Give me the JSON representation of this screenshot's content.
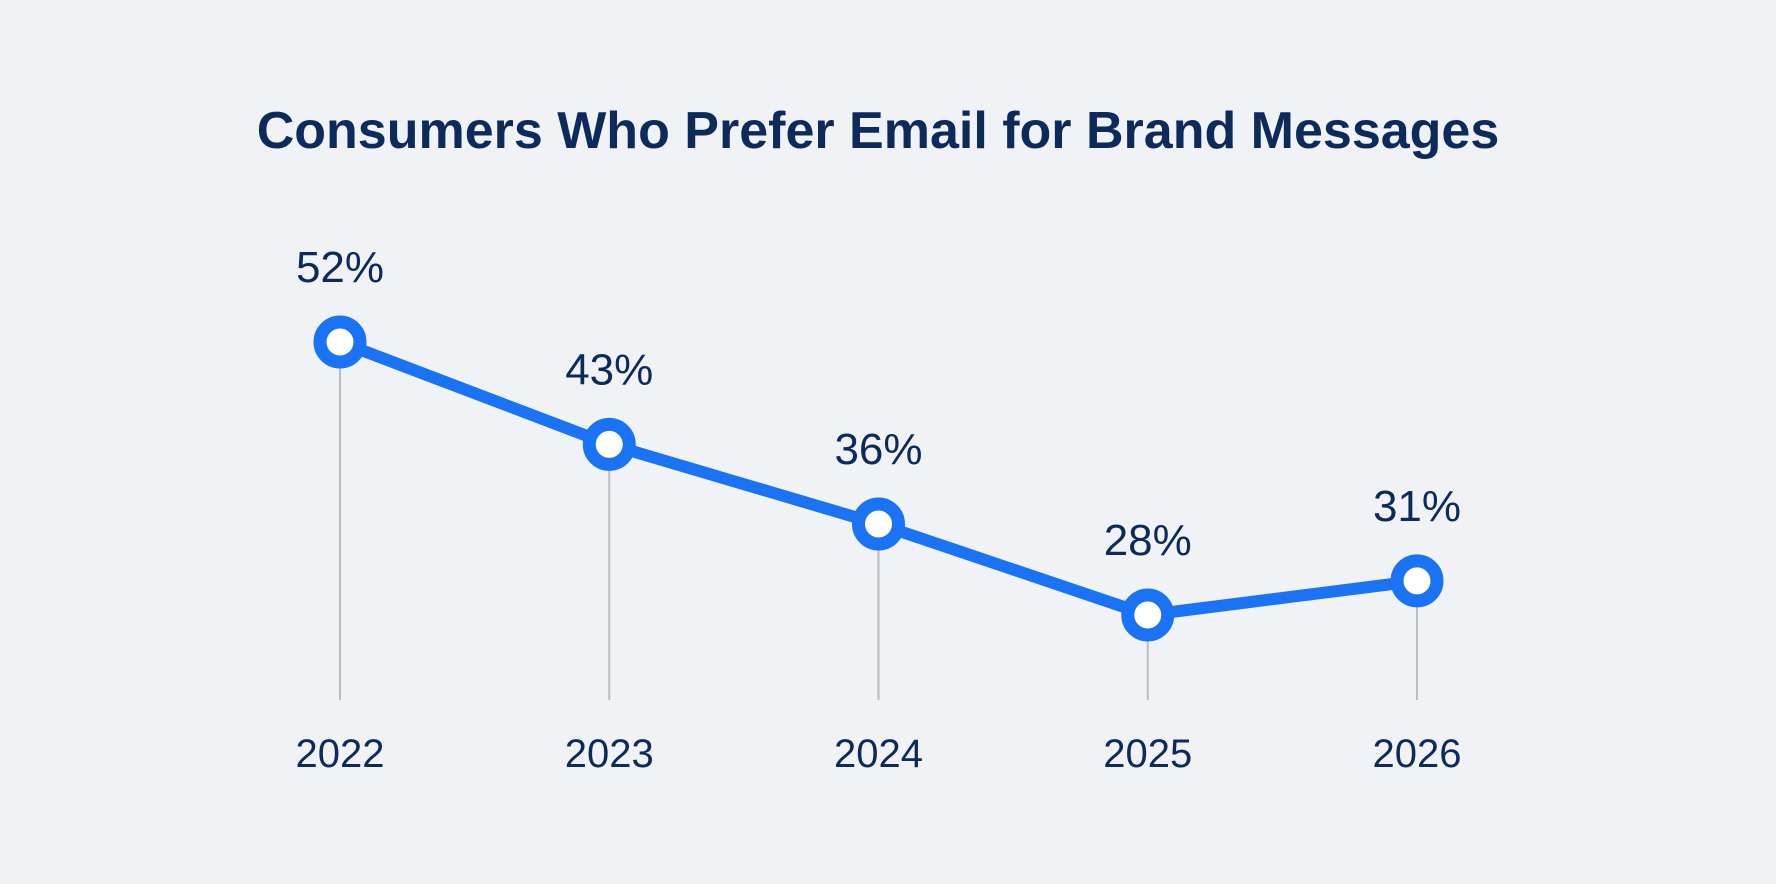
{
  "chart_data": {
    "type": "line",
    "title": "Consumers Who Prefer Email for Brand Messages",
    "categories": [
      "2022",
      "2023",
      "2024",
      "2025",
      "2026"
    ],
    "values": [
      52,
      43,
      36,
      28,
      31
    ],
    "data_labels": [
      "52%",
      "43%",
      "36%",
      "28%",
      "31%"
    ],
    "xlabel": "",
    "ylabel": "",
    "unit": "%",
    "grid": false,
    "legend": "none",
    "colors": {
      "line": "#1a73f5",
      "text": "#0c2a5b",
      "stem": "#b9bcc2",
      "background": "#f1f2f6"
    }
  }
}
